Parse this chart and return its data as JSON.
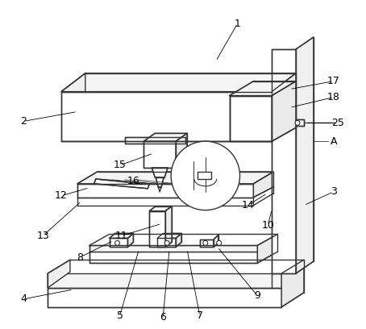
{
  "bg": "#ffffff",
  "lc": "#333333",
  "lw": 1.0,
  "fw": 4.54,
  "fh": 4.08,
  "dpi": 100,
  "label_fs": 9
}
